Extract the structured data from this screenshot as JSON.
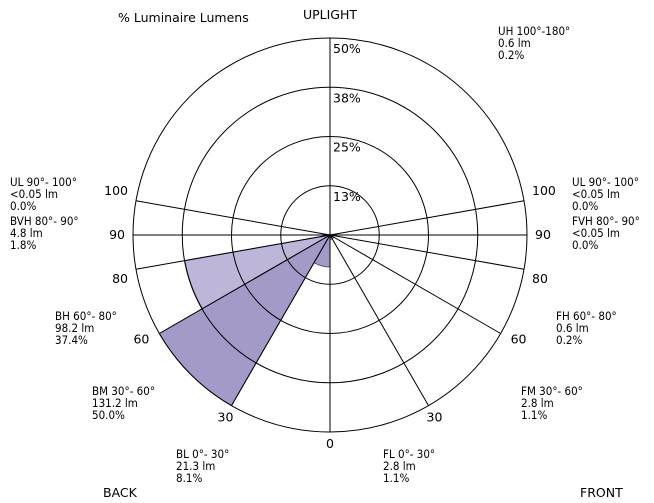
{
  "chart_data": {
    "type": "polar-area",
    "title": "% Luminaire Lumens",
    "top_label": "UPLIGHT",
    "corner_labels": {
      "back": "BACK",
      "front": "FRONT"
    },
    "ring_labels": [
      "13%",
      "25%",
      "38%",
      "50%"
    ],
    "ring_values": [
      12.5,
      25,
      37.5,
      50
    ],
    "rmax": 50,
    "angle_ticks": [
      {
        "text": "0",
        "angle": 0,
        "side": "center"
      },
      {
        "text": "30",
        "angle": 30,
        "side": "left"
      },
      {
        "text": "60",
        "angle": 60,
        "side": "left"
      },
      {
        "text": "80",
        "angle": 80,
        "side": "left"
      },
      {
        "text": "90",
        "angle": 90,
        "side": "left"
      },
      {
        "text": "100",
        "angle": 100,
        "side": "left"
      },
      {
        "text": "30",
        "angle": 30,
        "side": "right"
      },
      {
        "text": "60",
        "angle": 60,
        "side": "right"
      },
      {
        "text": "80",
        "angle": 80,
        "side": "right"
      },
      {
        "text": "90",
        "angle": 90,
        "side": "right"
      },
      {
        "text": "100",
        "angle": 100,
        "side": "right"
      }
    ],
    "zones": [
      {
        "name": "BL",
        "range": "0°- 30°",
        "lumens": "21.3 lm",
        "percent": "8.1%",
        "value": 8.1,
        "side": "back",
        "a0": 0,
        "a1": 30
      },
      {
        "name": "BM",
        "range": "30°- 60°",
        "lumens": "131.2 lm",
        "percent": "50.0%",
        "value": 50.0,
        "side": "back",
        "a0": 30,
        "a1": 60
      },
      {
        "name": "BH",
        "range": "60°- 80°",
        "lumens": "98.2 lm",
        "percent": "37.4%",
        "value": 37.4,
        "side": "back",
        "a0": 60,
        "a1": 80
      },
      {
        "name": "BVH",
        "range": "80°- 90°",
        "lumens": "4.8 lm",
        "percent": "1.8%",
        "value": 1.8,
        "side": "back",
        "a0": 80,
        "a1": 90
      },
      {
        "name": "UL",
        "range": "90°- 100°",
        "lumens": "<0.05 lm",
        "percent": "0.0%",
        "value": 0.0,
        "side": "back",
        "a0": 90,
        "a1": 100
      },
      {
        "name": "UH",
        "range": "100°-180°",
        "lumens": "0.6 lm",
        "percent": "0.2%",
        "value": 0.2,
        "side": "up",
        "a0": 100,
        "a1": 180
      },
      {
        "name": "UL",
        "range": "90°- 100°",
        "lumens": "<0.05 lm",
        "percent": "0.0%",
        "value": 0.0,
        "side": "front",
        "a0": 90,
        "a1": 100
      },
      {
        "name": "FVH",
        "range": "80°- 90°",
        "lumens": "<0.05 lm",
        "percent": "0.0%",
        "value": 0.0,
        "side": "front",
        "a0": 80,
        "a1": 90
      },
      {
        "name": "FH",
        "range": "60°- 80°",
        "lumens": "0.6 lm",
        "percent": "0.2%",
        "value": 0.2,
        "side": "front",
        "a0": 60,
        "a1": 80
      },
      {
        "name": "FM",
        "range": "30°- 60°",
        "lumens": "2.8 lm",
        "percent": "1.1%",
        "value": 1.1,
        "side": "front",
        "a0": 30,
        "a1": 60
      },
      {
        "name": "FL",
        "range": "0°- 30°",
        "lumens": "2.8 lm",
        "percent": "1.1%",
        "value": 1.1,
        "side": "front",
        "a0": 0,
        "a1": 30
      }
    ],
    "colors": {
      "dark_fill": "#a49ac8",
      "light_fill": "#bdb6d8",
      "edge": "#5a4f80",
      "grid": "#000000"
    }
  }
}
